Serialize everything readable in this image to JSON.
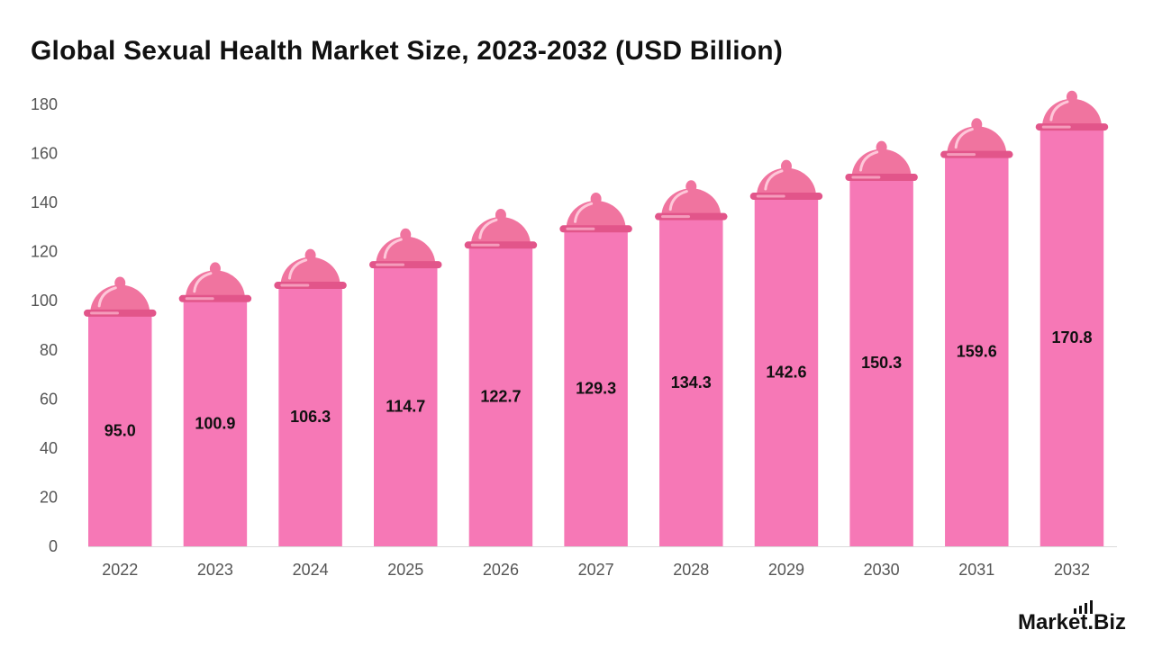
{
  "chart_data": {
    "type": "bar",
    "title": "Global Sexual Health Market Size, 2023-2032 (USD Billion)",
    "categories": [
      "2022",
      "2023",
      "2024",
      "2025",
      "2026",
      "2027",
      "2028",
      "2029",
      "2030",
      "2031",
      "2032"
    ],
    "values": [
      95.0,
      100.9,
      106.3,
      114.7,
      122.7,
      129.3,
      134.3,
      142.6,
      150.3,
      159.6,
      170.8
    ],
    "value_labels": [
      "95.0",
      "100.9",
      "106.3",
      "114.7",
      "122.7",
      "129.3",
      "134.3",
      "142.6",
      "150.3",
      "159.6",
      "170.8"
    ],
    "y_ticks": [
      "0",
      "20",
      "40",
      "60",
      "80",
      "100",
      "120",
      "140",
      "160",
      "180"
    ],
    "ylim": [
      0,
      180
    ],
    "xlabel": "",
    "ylabel": "",
    "grid": false,
    "bar_color": "#f678b6",
    "cap_color": "#f0749f",
    "rim_color": "#e2558a"
  },
  "brand": {
    "logo_text": "Market.Biz"
  }
}
